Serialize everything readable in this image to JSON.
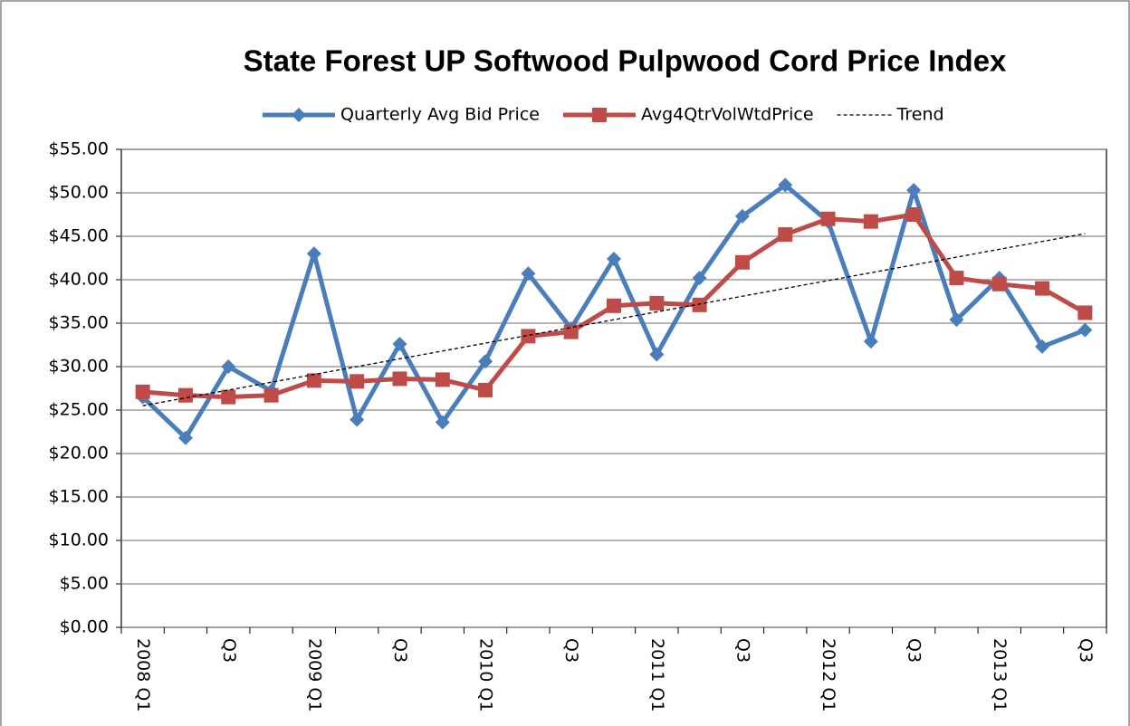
{
  "chart_data": {
    "type": "line",
    "title": "State Forest UP Softwood Pulpwood Cord Price Index",
    "categories": [
      "2008 Q1",
      null,
      "Q3",
      null,
      "2009 Q1",
      null,
      "Q3",
      null,
      "2010 Q1",
      null,
      "Q3",
      null,
      "2011 Q1",
      null,
      "Q3",
      null,
      "2012 Q1",
      null,
      "Q3",
      null,
      "2013 Q1",
      null,
      "Q3"
    ],
    "series": [
      {
        "name": "Quarterly Avg Bid Price",
        "color": "#4a7ebb",
        "marker": "diamond",
        "values": [
          26.5,
          21.8,
          30.0,
          27.2,
          43.0,
          23.9,
          32.6,
          23.6,
          30.6,
          40.7,
          34.4,
          42.4,
          31.4,
          40.2,
          47.3,
          50.9,
          46.7,
          32.9,
          50.3,
          35.4,
          40.2,
          32.3,
          34.2
        ]
      },
      {
        "name": "Avg4QtrVolWtdPrice",
        "color": "#be4b48",
        "marker": "square",
        "values": [
          27.1,
          26.7,
          26.5,
          26.7,
          28.4,
          28.3,
          28.6,
          28.5,
          27.3,
          33.5,
          34.0,
          37.0,
          37.3,
          37.1,
          42.0,
          45.2,
          47.0,
          46.7,
          47.5,
          40.2,
          39.5,
          39.0,
          36.2
        ]
      },
      {
        "name": "Trend",
        "color": "#000000",
        "dash": true,
        "values": [
          25.5,
          26.4,
          27.3,
          28.2,
          29.1,
          30.0,
          30.9,
          31.8,
          32.7,
          33.6,
          34.5,
          35.4,
          36.3,
          37.2,
          38.1,
          39.0,
          39.9,
          40.8,
          41.7,
          42.6,
          43.5,
          44.4,
          45.3
        ]
      }
    ],
    "ylim": [
      0,
      55
    ],
    "yticks": [
      {
        "value": 0,
        "label": "$0.00"
      },
      {
        "value": 5,
        "label": "$5.00"
      },
      {
        "value": 10,
        "label": "$10.00"
      },
      {
        "value": 15,
        "label": "$15.00"
      },
      {
        "value": 20,
        "label": "$20.00"
      },
      {
        "value": 25,
        "label": "$25.00"
      },
      {
        "value": 30,
        "label": "$30.00"
      },
      {
        "value": 35,
        "label": "$35.00"
      },
      {
        "value": 40,
        "label": "$40.00"
      },
      {
        "value": 45,
        "label": "$45.00"
      },
      {
        "value": 50,
        "label": "$50.00"
      },
      {
        "value": 55,
        "label": "$55.00"
      }
    ],
    "grid": true,
    "legend": "top"
  }
}
